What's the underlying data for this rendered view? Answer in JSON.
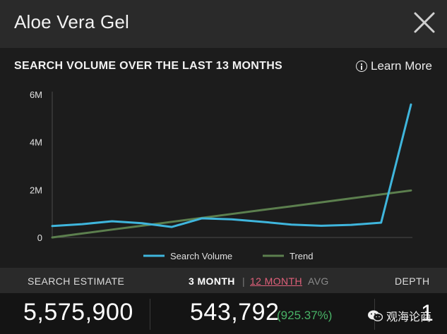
{
  "header": {
    "title": "Aloe Vera Gel",
    "close_icon": "close-icon"
  },
  "chart_section": {
    "title": "SEARCH VOLUME OVER THE LAST 13 MONTHS",
    "learn_more_label": "Learn More",
    "info_icon": "info-icon"
  },
  "chart_data": {
    "type": "line",
    "x": [
      1,
      2,
      3,
      4,
      5,
      6,
      7,
      8,
      9,
      10,
      11,
      12,
      13
    ],
    "ylim": [
      0,
      6000000
    ],
    "yticks": [
      {
        "value": 0,
        "label": "0"
      },
      {
        "value": 2000000,
        "label": "2M"
      },
      {
        "value": 4000000,
        "label": "4M"
      },
      {
        "value": 6000000,
        "label": "6M"
      }
    ],
    "series": [
      {
        "name": "Search Volume",
        "color": "#3fb6dd",
        "values": [
          480000,
          560000,
          680000,
          600000,
          440000,
          800000,
          760000,
          660000,
          540000,
          490000,
          530000,
          620000,
          5575900
        ]
      },
      {
        "name": "Trend",
        "color": "#5c7f4e",
        "values": [
          0,
          165000,
          330000,
          490000,
          655000,
          820000,
          985000,
          1150000,
          1310000,
          1475000,
          1640000,
          1805000,
          1970000
        ]
      }
    ],
    "legend_position": "bottom-center",
    "grid": false
  },
  "stats": {
    "search_estimate_label": "SEARCH ESTIMATE",
    "search_estimate_value": "5,575,900",
    "tabs": {
      "three_month": "3 MONTH",
      "separator": "|",
      "twelve_month": "12 MONTH",
      "avg": "AVG"
    },
    "three_month_value": "543,792",
    "three_month_change": "(925.37%)",
    "depth_label": "DEPTH",
    "depth_value": "1",
    "watermark_text": "观海论商",
    "watermark_icon": "wechat-icon"
  },
  "colors": {
    "accent_pink": "#e0607a",
    "positive_green": "#48b266",
    "search_volume_line": "#3fb6dd",
    "trend_line": "#5c7f4e"
  }
}
